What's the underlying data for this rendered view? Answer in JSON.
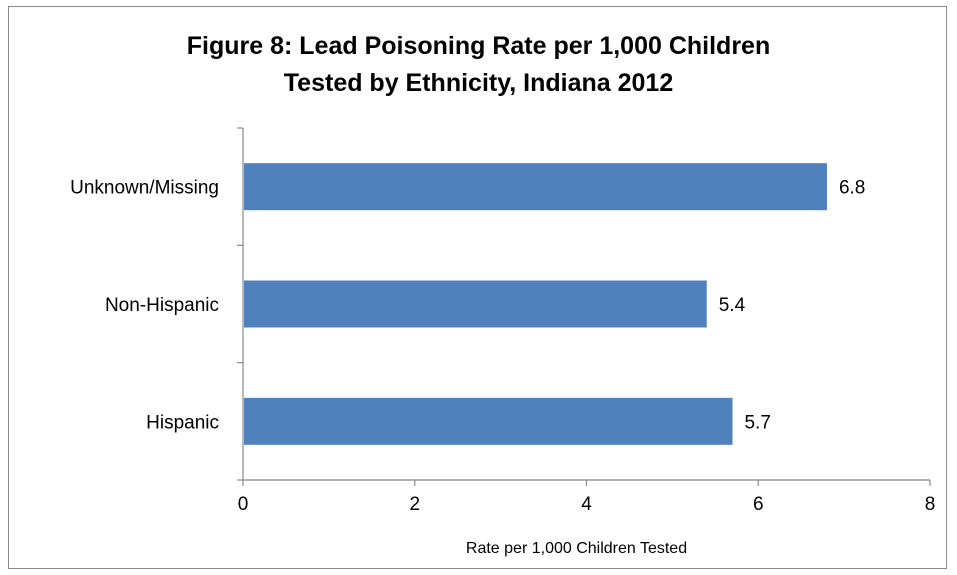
{
  "chart_data": {
    "type": "bar",
    "orientation": "horizontal",
    "title_line1": "Figure 8: Lead Poisoning Rate per 1,000 Children",
    "title_line2": "Tested by Ethnicity, Indiana 2012",
    "categories": [
      "Unknown/Missing",
      "Non-Hispanic",
      "Hispanic"
    ],
    "values": [
      6.8,
      5.4,
      5.7
    ],
    "value_labels": [
      "6.8",
      "5.4",
      "5.7"
    ],
    "xlabel": "Rate per 1,000 Children Tested",
    "ylabel": "",
    "xlim": [
      0,
      8
    ],
    "xticks": [
      "0",
      "2",
      "4",
      "6",
      "8"
    ],
    "grid": false,
    "legend": "none",
    "bar_color": "#4F81BD"
  }
}
